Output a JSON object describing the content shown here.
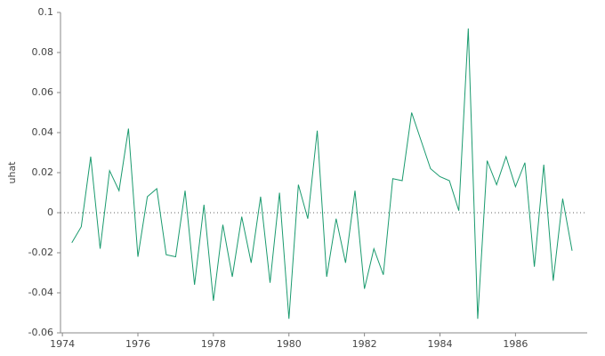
{
  "chart_data": {
    "type": "line",
    "y_label": "uhat",
    "x": [
      1974.25,
      1974.5,
      1974.75,
      1975,
      1975.25,
      1975.5,
      1975.75,
      1976,
      1976.25,
      1976.5,
      1976.75,
      1977,
      1977.25,
      1977.5,
      1977.75,
      1978,
      1978.25,
      1978.5,
      1978.75,
      1979,
      1979.25,
      1979.5,
      1979.75,
      1980,
      1980.25,
      1980.5,
      1980.75,
      1981,
      1981.25,
      1981.5,
      1981.75,
      1982,
      1982.25,
      1982.5,
      1982.75,
      1983,
      1983.25,
      1983.5,
      1983.75,
      1984,
      1984.25,
      1984.5,
      1984.75,
      1985,
      1985.25,
      1985.5,
      1985.75,
      1986,
      1986.25,
      1986.5,
      1986.75,
      1987,
      1987.25,
      1987.5
    ],
    "series": [
      {
        "name": "uhat",
        "color": "#1a9a6e",
        "values": [
          -0.015,
          -0.007,
          0.028,
          -0.018,
          0.021,
          0.011,
          0.042,
          -0.022,
          0.008,
          0.012,
          -0.021,
          -0.022,
          0.011,
          -0.036,
          0.004,
          -0.044,
          -0.006,
          -0.032,
          -0.002,
          -0.025,
          0.008,
          -0.035,
          0.01,
          -0.053,
          0.014,
          -0.003,
          0.041,
          -0.032,
          -0.003,
          -0.025,
          0.011,
          -0.038,
          -0.018,
          -0.031,
          0.017,
          0.016,
          0.05,
          0.036,
          0.022,
          0.018,
          0.016,
          0.001,
          0.092,
          -0.053,
          0.026,
          0.014,
          0.028,
          0.013,
          0.025,
          -0.027,
          0.024,
          -0.034,
          0.007,
          -0.019
        ]
      }
    ],
    "xlim": [
      1973.95,
      1987.9
    ],
    "xticks": [
      1974,
      1976,
      1978,
      1980,
      1982,
      1984,
      1986
    ],
    "ylim": [
      -0.06,
      0.1
    ],
    "yticks": [
      -0.06,
      -0.04,
      -0.02,
      0,
      0.02,
      0.04,
      0.06,
      0.08,
      0.1
    ],
    "zero_line": true
  }
}
